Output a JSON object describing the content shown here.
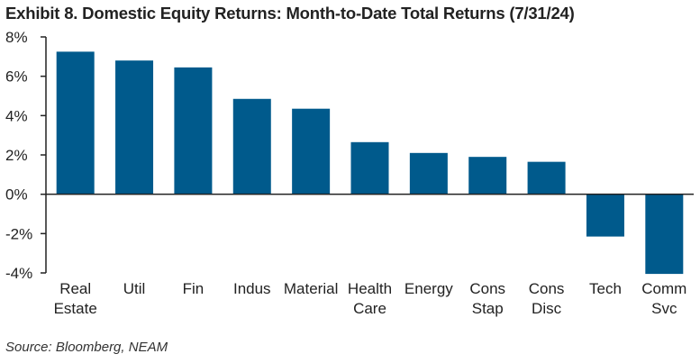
{
  "chart_data": {
    "type": "bar",
    "title": "Exhibit 8. Domestic Equity Returns: Month-to-Date Total Returns (7/31/24)",
    "categories": [
      [
        "Real",
        "Estate"
      ],
      [
        "Util"
      ],
      [
        "Fin"
      ],
      [
        "Indus"
      ],
      [
        "Material"
      ],
      [
        "Health",
        "Care"
      ],
      [
        "Energy"
      ],
      [
        "Cons",
        "Stap"
      ],
      [
        "Cons",
        "Disc"
      ],
      [
        "Tech"
      ],
      [
        "Comm",
        "Svc"
      ]
    ],
    "values": [
      7.25,
      6.8,
      6.45,
      4.85,
      4.35,
      2.65,
      2.1,
      1.9,
      1.65,
      -2.15,
      -4.05
    ],
    "ylim": [
      -4,
      8
    ],
    "yticks": [
      -4,
      -2,
      0,
      2,
      4,
      6,
      8
    ],
    "ytick_labels": [
      "-4%",
      "-2%",
      "0%",
      "2%",
      "4%",
      "6%",
      "8%"
    ],
    "xlabel": "",
    "ylabel": "",
    "grid": false,
    "bar_color": "#005a8c",
    "source": "Source: Bloomberg, NEAM"
  }
}
